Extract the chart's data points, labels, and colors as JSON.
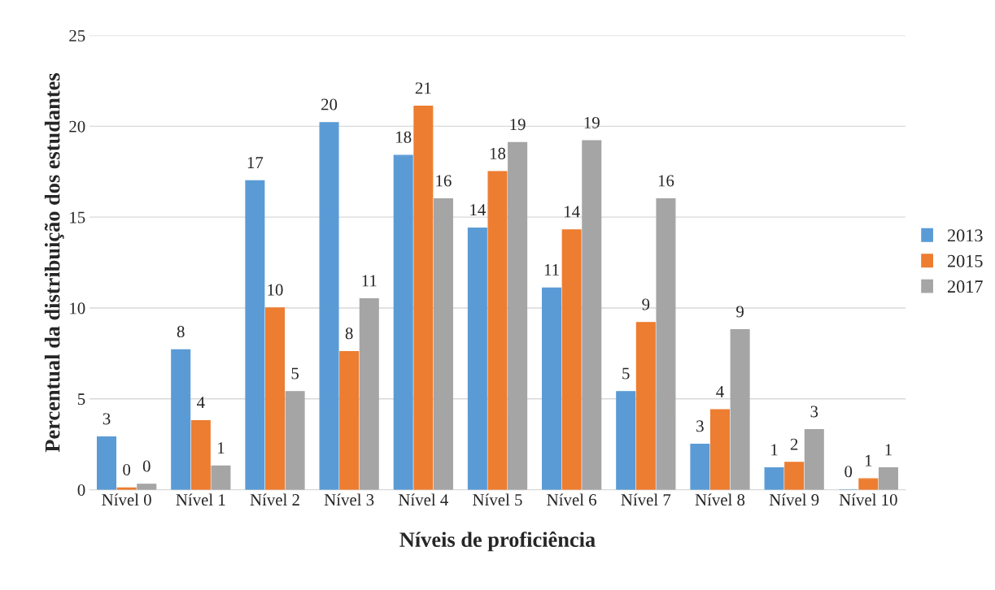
{
  "chart_data": {
    "type": "bar",
    "xlabel": "Níveis de proficiência",
    "ylabel": "Percentual da distribuição dos estudantes",
    "categories": [
      "Nível 0",
      "Nível 1",
      "Nível 2",
      "Nível 3",
      "Nível 4",
      "Nível 5",
      "Nível 6",
      "Nível 7",
      "Nível 8",
      "Nível 9",
      "Nível 10"
    ],
    "series": [
      {
        "name": "2013",
        "color": "#5b9bd5",
        "values": [
          2.9,
          7.7,
          17.0,
          20.2,
          18.4,
          14.4,
          11.1,
          5.4,
          2.5,
          1.2,
          0
        ],
        "value_labels": [
          "3",
          "8",
          "17",
          "20",
          "18",
          "14",
          "11",
          "5",
          "3",
          "1",
          "0"
        ]
      },
      {
        "name": "2015",
        "color": "#ed7d31",
        "values": [
          0.1,
          3.8,
          10.0,
          7.6,
          21.1,
          17.5,
          14.3,
          9.2,
          4.4,
          1.5,
          0.6
        ],
        "value_labels": [
          "0",
          "4",
          "10",
          "8",
          "21",
          "18",
          "14",
          "9",
          "4",
          "2",
          "1"
        ]
      },
      {
        "name": "2017",
        "color": "#a5a5a5",
        "values": [
          0.3,
          1.3,
          5.4,
          10.5,
          16.0,
          19.1,
          19.2,
          16.0,
          8.8,
          3.3,
          1.2
        ],
        "value_labels": [
          "0",
          "1",
          "5",
          "11",
          "16",
          "19",
          "19",
          "16",
          "9",
          "3",
          "1"
        ]
      }
    ],
    "ylim": [
      0,
      25
    ],
    "yticks": [
      0,
      5,
      10,
      15,
      20,
      25
    ],
    "grid": "y",
    "legend": "right"
  }
}
